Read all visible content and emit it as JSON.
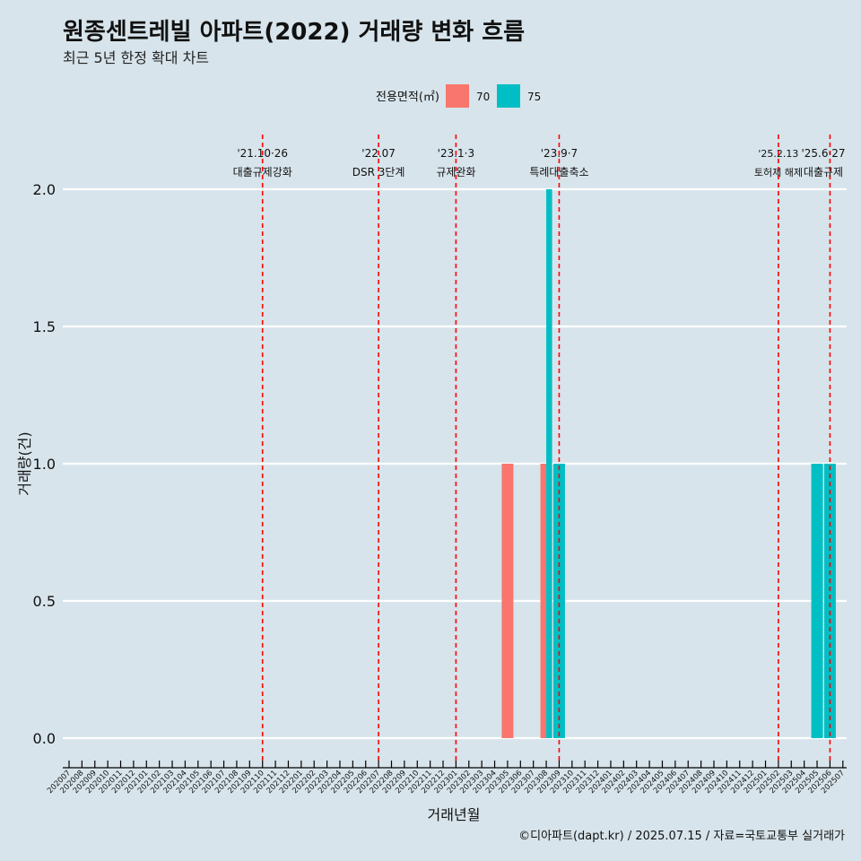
{
  "chart_data": {
    "type": "bar",
    "title": "원종센트레빌 아파트(2022) 거래량 변화 흐름",
    "subtitle": "최근 5년 한정 확대 차트",
    "xlabel": "거래년월",
    "ylabel": "거래량(건)",
    "caption": "©디아파트(dapt.kr) / 2025.07.15 / 자료=국토교통부 실거래가",
    "ylim": [
      0,
      2
    ],
    "yticks": [
      "0.0",
      "0.5",
      "1.0",
      "1.5",
      "2.0"
    ],
    "legend": {
      "title": "전용면적(㎡)",
      "position": "top"
    },
    "categories": [
      "202007",
      "202008",
      "202009",
      "202010",
      "202011",
      "202012",
      "202101",
      "202102",
      "202103",
      "202104",
      "202105",
      "202106",
      "202107",
      "202108",
      "202109",
      "202110",
      "202111",
      "202112",
      "202201",
      "202202",
      "202203",
      "202204",
      "202205",
      "202206",
      "202207",
      "202208",
      "202209",
      "202210",
      "202211",
      "202212",
      "202301",
      "202302",
      "202303",
      "202304",
      "202305",
      "202306",
      "202307",
      "202308",
      "202309",
      "202310",
      "202311",
      "202312",
      "202401",
      "202402",
      "202403",
      "202404",
      "202405",
      "202406",
      "202407",
      "202408",
      "202409",
      "202410",
      "202411",
      "202412",
      "202501",
      "202502",
      "202503",
      "202504",
      "202505",
      "202506",
      "202507"
    ],
    "series": [
      {
        "name": "70",
        "color": "#f8766d",
        "points": [
          {
            "x": "202305",
            "y": 1
          },
          {
            "x": "202308",
            "y": 1
          }
        ]
      },
      {
        "name": "75",
        "color": "#00bfc4",
        "points": [
          {
            "x": "202308",
            "y": 2
          },
          {
            "x": "202309",
            "y": 1
          },
          {
            "x": "202505",
            "y": 1
          },
          {
            "x": "202506",
            "y": 1
          }
        ]
      }
    ],
    "events": [
      {
        "x": "202110",
        "line1": "'21.10·26",
        "line2": "대출규제강화",
        "small": false
      },
      {
        "x": "202207",
        "line1": "'22.07",
        "line2": "DSR 3단계",
        "small": false
      },
      {
        "x": "202301",
        "line1": "'23.1·3",
        "line2": "규제완화",
        "small": false
      },
      {
        "x": "202309",
        "line1": "'23.9·7",
        "line2": "특례대출축소",
        "small": false
      },
      {
        "x": "202502",
        "line1": "'25.2.13",
        "line2": "토허제 해제",
        "small": true
      },
      {
        "x": "202506",
        "line1": "'25.6·27",
        "line2": "대출규제",
        "small": false
      }
    ],
    "event_line_color": "#ff0000",
    "grid": true
  }
}
